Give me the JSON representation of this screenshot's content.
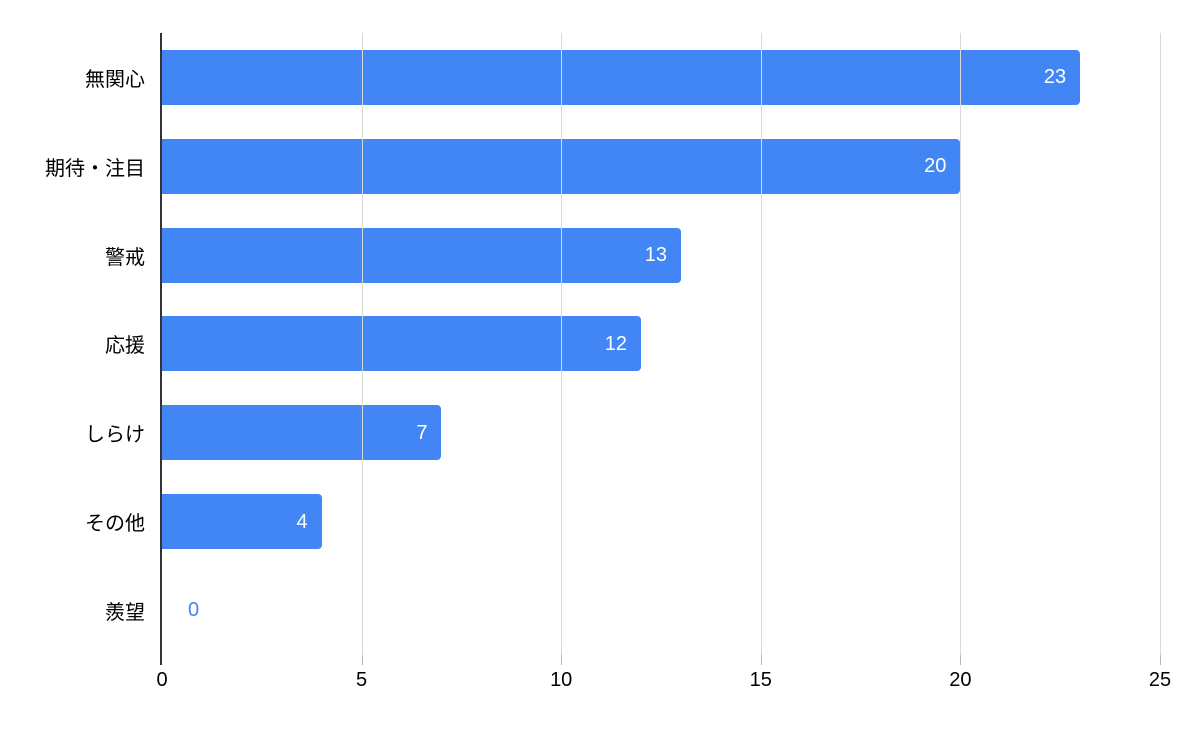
{
  "chart_data": {
    "type": "bar",
    "orientation": "horizontal",
    "title": "",
    "xlabel": "",
    "ylabel": "",
    "categories": [
      "無関心",
      "期待・注目",
      "警戒",
      "応援",
      "しらけ",
      "その他",
      "羨望"
    ],
    "values": [
      23,
      20,
      13,
      12,
      7,
      4,
      0
    ],
    "xlim": [
      0,
      25
    ],
    "xticks": [
      0,
      5,
      10,
      15,
      20,
      25
    ],
    "grid": "vertical-only",
    "legend": "none",
    "value_labels": "inside-end",
    "colors": {
      "bar": "#4285f4",
      "value_label_inside": "#ffffff",
      "value_label_zero": "#4285f4",
      "gridline": "#d9d9d9",
      "axis_line": "#333333",
      "tick_mark": "#b7b7b7",
      "text": "#000000",
      "background": "#ffffff"
    }
  }
}
